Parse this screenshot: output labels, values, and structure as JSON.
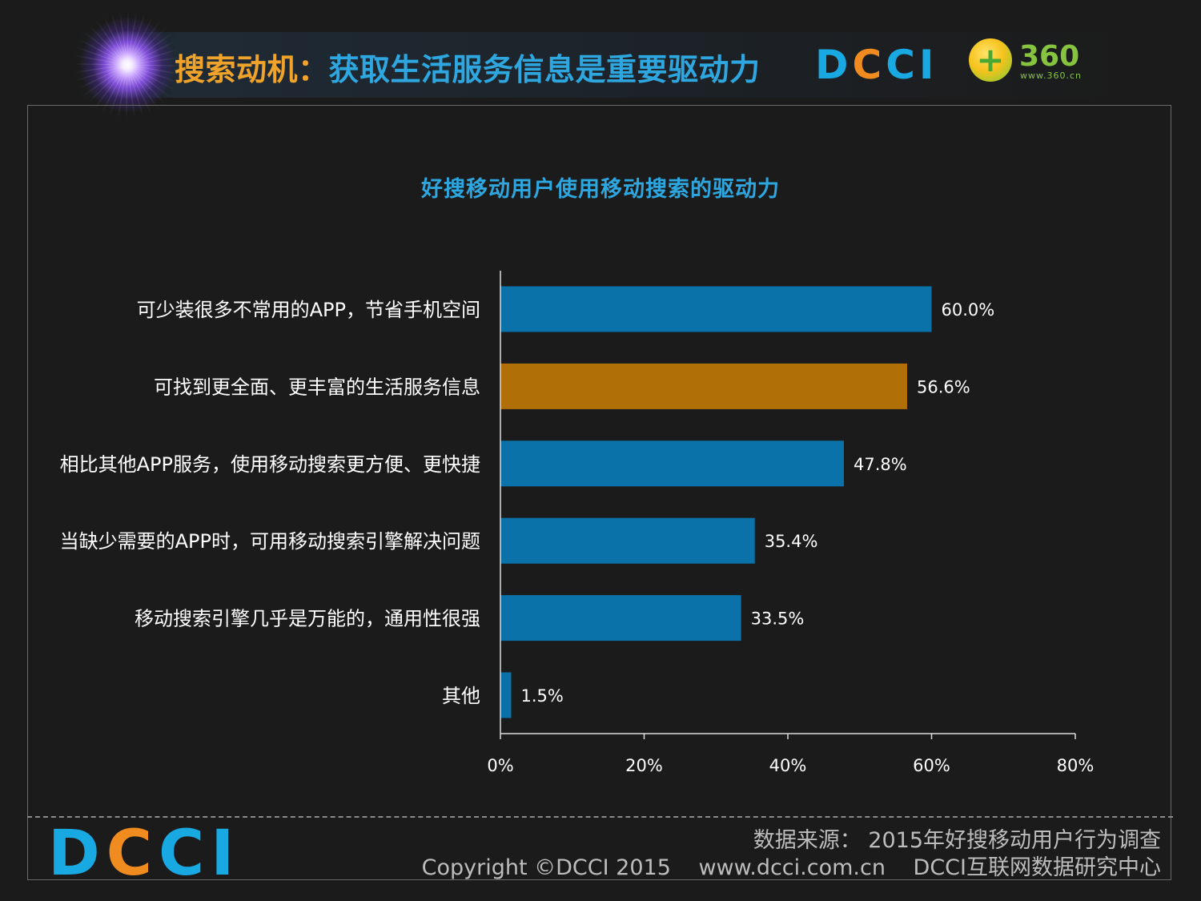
{
  "header": {
    "title_keyword": "搜索动机：",
    "title_rest": "获取生活服务信息是重要驱动力",
    "logo_dcci": {
      "d": "D",
      "c1": "C",
      "c2": "C",
      "i": "I"
    },
    "logo_360": "360",
    "logo_360_url": "www.360.cn"
  },
  "footer": {
    "logo": {
      "d": "D",
      "c1": "C",
      "c2": "C",
      "i": "I"
    },
    "source": "数据来源： 2015年好搜移动用户行为调查",
    "copyright": "Copyright ©DCCI 2015",
    "website": "www.dcci.com.cn",
    "org": "DCCI互联网数据研究中心"
  },
  "colors": {
    "bar_default": "#0a72a9",
    "bar_highlight": "#b06f07",
    "title_accent": "#f0a32a",
    "title_blue": "#2ea7e0"
  },
  "chart_data": {
    "type": "bar",
    "orientation": "horizontal",
    "title": "好搜移动用户使用移动搜索的驱动力",
    "categories": [
      "可少装很多不常用的APP，节省手机空间",
      "可找到更全面、更丰富的生活服务信息",
      "相比其他APP服务，使用移动搜索更方便、更快捷",
      "当缺少需要的APP时，可用移动搜索引擎解决问题",
      "移动搜索引擎几乎是万能的，通用性很强",
      "其他"
    ],
    "values": [
      60.0,
      56.6,
      47.8,
      35.4,
      33.5,
      1.5
    ],
    "value_labels": [
      "60.0%",
      "56.6%",
      "47.8%",
      "35.4%",
      "33.5%",
      "1.5%"
    ],
    "highlight_index": 1,
    "xlim": [
      0,
      80
    ],
    "xticks": [
      0,
      20,
      40,
      60,
      80
    ],
    "xtick_labels": [
      "0%",
      "20%",
      "40%",
      "60%",
      "80%"
    ],
    "grid": false
  }
}
